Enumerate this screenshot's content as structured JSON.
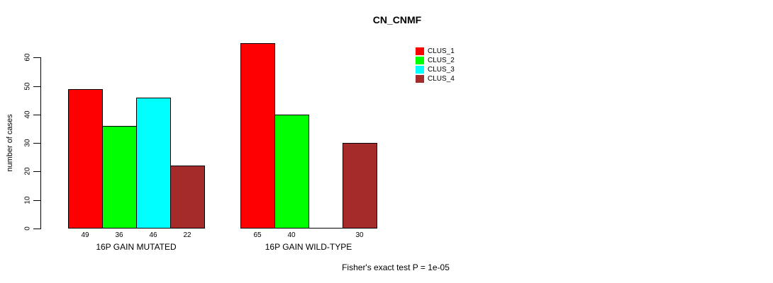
{
  "chart_data": {
    "type": "bar",
    "title": "CN_CNMF",
    "ylabel": "number of cases",
    "xlabel": "",
    "categories": [
      "16P GAIN MUTATED",
      "16P GAIN WILD-TYPE"
    ],
    "series": [
      {
        "name": "CLUS_1",
        "color": "#FF0000",
        "values": [
          49,
          65
        ]
      },
      {
        "name": "CLUS_2",
        "color": "#00FF00",
        "values": [
          36,
          40
        ]
      },
      {
        "name": "CLUS_3",
        "color": "#00FFFF",
        "values": [
          46,
          0
        ]
      },
      {
        "name": "CLUS_4",
        "color": "#A52A2A",
        "values": [
          22,
          30
        ]
      }
    ],
    "bar_value_labels": [
      [
        "49",
        "36",
        "46",
        "22"
      ],
      [
        "65",
        "40",
        "",
        "30"
      ]
    ],
    "yticks": [
      0,
      10,
      20,
      30,
      40,
      50,
      60
    ],
    "ylim": [
      0,
      65
    ],
    "grid": false,
    "legend_position": "top-right",
    "annotation": "Fisher's exact test P = 1e-05"
  }
}
